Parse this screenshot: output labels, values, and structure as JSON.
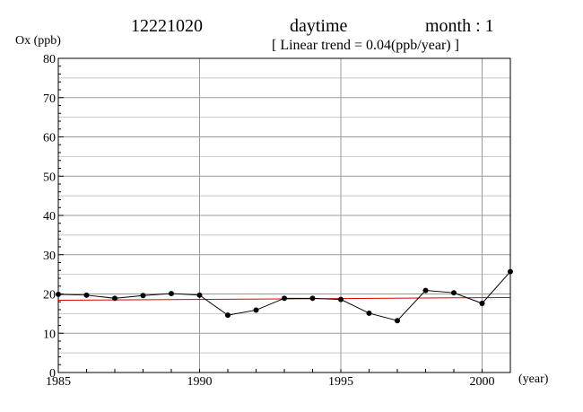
{
  "header": {
    "station": "12221020",
    "period": "daytime",
    "month": "month : 1",
    "trend": "[ Linear trend = 0.04(ppb/year) ]"
  },
  "chart_data": {
    "type": "line",
    "ylabel": "Ox (ppb)",
    "xlabel": "(year)",
    "xlim": [
      1985,
      2001
    ],
    "ylim": [
      0,
      80
    ],
    "x_ticks": [
      1985,
      1990,
      1995,
      2000
    ],
    "y_ticks": [
      0,
      10,
      20,
      30,
      40,
      50,
      60,
      70,
      80
    ],
    "grid": true,
    "series": [
      {
        "color": "#000000",
        "x": [
          1985,
          1986,
          1987,
          1988,
          1989,
          1990,
          1991,
          1992,
          1993,
          1994,
          1995,
          1996,
          1997,
          1998,
          1999,
          2000,
          2001
        ],
        "values": [
          19.9,
          19.7,
          18.9,
          19.6,
          20.1,
          19.7,
          14.6,
          15.9,
          18.9,
          18.9,
          18.6,
          15.1,
          13.2,
          20.9,
          20.3,
          17.6,
          25.7
        ]
      }
    ],
    "trend_line": {
      "color": "#e00000",
      "slope_per_year": 0.04,
      "x": [
        1985,
        2001
      ],
      "values": [
        18.4,
        19.1
      ]
    }
  }
}
